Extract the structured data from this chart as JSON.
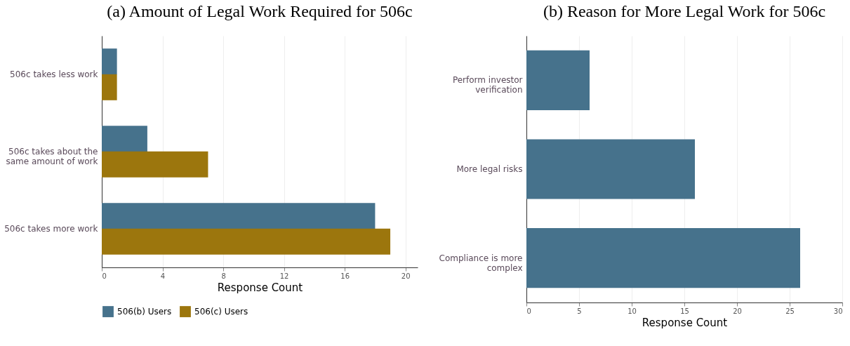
{
  "chart_data": [
    {
      "type": "bar",
      "orientation": "horizontal",
      "title": "(a) Amount of Legal Work Required for 506c",
      "xlabel": "Response Count",
      "categories": [
        "506c takes less work",
        "506c takes about the same amount of work",
        "506c takes more work"
      ],
      "series": [
        {
          "name": "506(b) Users",
          "color": "#46728c",
          "values": [
            1,
            3,
            18
          ]
        },
        {
          "name": "506(c) Users",
          "color": "#9c760d",
          "values": [
            1,
            7,
            19
          ]
        }
      ],
      "xlim": [
        0,
        20.8
      ],
      "xticks": [
        0,
        4,
        8,
        12,
        16,
        20
      ],
      "grid": "x",
      "legend": "bottom"
    },
    {
      "type": "bar",
      "orientation": "horizontal",
      "title": "(b) Reason for More Legal Work for 506c",
      "xlabel": "Response Count",
      "categories": [
        "Perform investor verification",
        "More legal risks",
        "Compliance is more complex"
      ],
      "series": [
        {
          "color": "#46728c",
          "values": [
            6,
            16,
            26
          ]
        }
      ],
      "xlim": [
        0,
        30
      ],
      "xticks": [
        0,
        5,
        10,
        15,
        20,
        25,
        30
      ],
      "grid": "x"
    }
  ]
}
